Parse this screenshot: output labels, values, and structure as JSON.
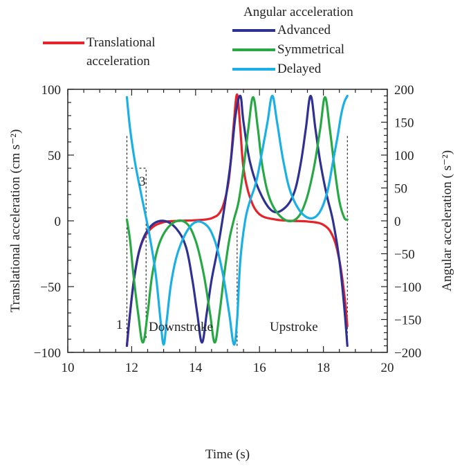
{
  "chart_data": {
    "type": "line",
    "title": "",
    "xlabel": "Time (s)",
    "ylabel_left": "Translational acceleration (cm s⁻²)",
    "ylabel_right": "Angular acceleration (  s⁻²)",
    "xlim": [
      10,
      20
    ],
    "ylim_left": [
      -100,
      100
    ],
    "ylim_right": [
      -200,
      200
    ],
    "x_ticks": [
      "10",
      "12",
      "14",
      "16",
      "18",
      "20"
    ],
    "y_left_ticks": [
      "100",
      "50",
      "0",
      "−50",
      "−100"
    ],
    "y_right_ticks": [
      "200",
      "150",
      "100",
      "50",
      "0",
      "−50",
      "−100",
      "−150",
      "−200"
    ],
    "legend": {
      "angular_header": "Angular acceleration",
      "translational_label_line1": "Translational",
      "translational_label_line2": "acceleration",
      "entries": [
        "Advanced",
        "Symmetrical",
        "Delayed"
      ]
    },
    "annotations": {
      "marker_1": "1",
      "marker_3": "3",
      "downstroke": "Downstroke",
      "upstroke": "Upstroke"
    },
    "stroke_boundaries": {
      "start": 11.85,
      "reversal": 15.3,
      "end": 18.75
    },
    "colors": {
      "translational": "#e4232a",
      "advanced": "#2e3192",
      "symmetrical": "#27a845",
      "delayed": "#1ab0e6",
      "dashed": "#000000"
    },
    "series": [
      {
        "name": "Translational acceleration",
        "axis": "left",
        "x": [
          11.85,
          11.95,
          12.1,
          12.3,
          12.6,
          13.0,
          13.5,
          14.0,
          14.5,
          14.8,
          15.0,
          15.1,
          15.2,
          15.3,
          15.4,
          15.5,
          15.7,
          16.0,
          16.5,
          17.0,
          17.5,
          18.0,
          18.3,
          18.5,
          18.65,
          18.75
        ],
        "y": [
          -95,
          -70,
          -40,
          -18,
          -6,
          -1,
          0,
          0.5,
          2,
          8,
          25,
          45,
          75,
          96,
          70,
          40,
          18,
          5,
          1,
          0,
          -0.5,
          -3,
          -12,
          -30,
          -55,
          -80
        ]
      },
      {
        "name": "Advanced",
        "axis": "right",
        "x": [
          11.85,
          11.95,
          12.1,
          12.3,
          12.6,
          13.0,
          13.4,
          13.7,
          13.9,
          14.05,
          14.2,
          14.35,
          14.5,
          14.7,
          14.9,
          15.1,
          15.25,
          15.4,
          15.5,
          15.7,
          16.0,
          16.4,
          16.8,
          17.1,
          17.3,
          17.45,
          17.6,
          17.75,
          17.9,
          18.1,
          18.3,
          18.5,
          18.65,
          18.75
        ],
        "y": [
          -190,
          -140,
          -80,
          -35,
          -8,
          0,
          -12,
          -40,
          -90,
          -140,
          -185,
          -140,
          -90,
          -40,
          20,
          90,
          160,
          190,
          150,
          90,
          45,
          15,
          20,
          45,
          90,
          140,
          190,
          140,
          90,
          40,
          0,
          -60,
          -130,
          -190
        ]
      },
      {
        "name": "Symmetrical",
        "axis": "right",
        "x": [
          11.85,
          11.95,
          12.05,
          12.2,
          12.35,
          12.5,
          12.65,
          12.9,
          13.3,
          13.7,
          14.0,
          14.25,
          14.45,
          14.6,
          14.75,
          14.9,
          15.05,
          15.2,
          15.35,
          15.5,
          15.65,
          15.8,
          15.95,
          16.1,
          16.35,
          16.75,
          17.15,
          17.45,
          17.7,
          17.9,
          18.05,
          18.2,
          18.35,
          18.5,
          18.65,
          18.75
        ],
        "y": [
          2,
          -30,
          -80,
          -140,
          -185,
          -140,
          -80,
          -30,
          -3,
          -3,
          -30,
          -80,
          -140,
          -185,
          -140,
          -80,
          -30,
          2,
          30,
          80,
          140,
          188,
          140,
          80,
          30,
          3,
          3,
          30,
          80,
          140,
          188,
          140,
          80,
          30,
          5,
          2
        ]
      },
      {
        "name": "Delayed",
        "axis": "right",
        "x": [
          11.85,
          11.95,
          12.1,
          12.3,
          12.55,
          12.75,
          12.9,
          13.0,
          13.1,
          13.25,
          13.5,
          13.9,
          14.3,
          14.6,
          14.85,
          15.05,
          15.2,
          15.3,
          15.4,
          15.55,
          15.7,
          15.9,
          16.1,
          16.25,
          16.4,
          16.55,
          16.75,
          17.0,
          17.4,
          17.8,
          18.1,
          18.3,
          18.45,
          18.55,
          18.65,
          18.75
        ],
        "y": [
          188,
          140,
          90,
          40,
          -20,
          -80,
          -150,
          -188,
          -150,
          -90,
          -40,
          -5,
          -5,
          -30,
          -80,
          -140,
          -188,
          -150,
          -60,
          0,
          30,
          60,
          110,
          150,
          190,
          150,
          90,
          40,
          8,
          8,
          40,
          90,
          130,
          160,
          180,
          190
        ]
      }
    ]
  }
}
